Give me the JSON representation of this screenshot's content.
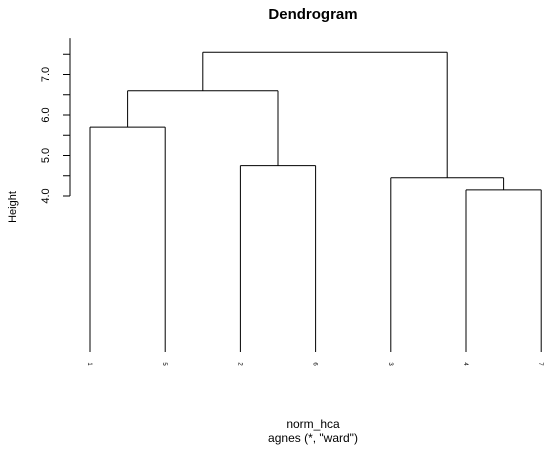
{
  "chart_data": {
    "type": "dendrogram",
    "title": "Dendrogram",
    "ylabel": "Height",
    "xlabel": "norm_hca",
    "sub": "agnes (*, \"ward\")",
    "y_ticks": [
      "4.0",
      "5.0",
      "6.0",
      "7.0"
    ],
    "ylim": [
      3.5,
      7.8
    ],
    "leaf_baseline_height": 0.0,
    "leaves": [
      "1",
      "5",
      "2",
      "6",
      "3",
      "4",
      "7"
    ],
    "merges": [
      {
        "left": "1",
        "right": "5",
        "height": 5.7
      },
      {
        "left": "2",
        "right": "6",
        "height": 4.75
      },
      {
        "left": "4",
        "right": "7",
        "height": 4.15
      },
      {
        "left": "3",
        "right": "(4,7)",
        "height": 4.45
      },
      {
        "left": "(1,5)",
        "right": "(2,6)",
        "height": 6.6
      },
      {
        "left": "(1,5,2,6)",
        "right": "(3,4,7)",
        "height": 7.55
      }
    ],
    "grid": false,
    "legend": "none"
  }
}
